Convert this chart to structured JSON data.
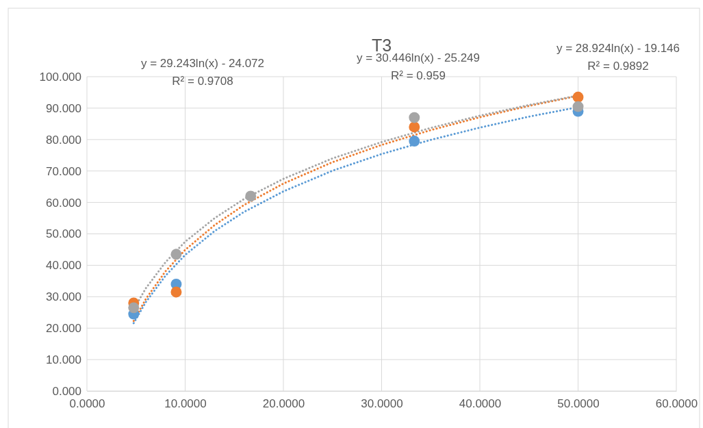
{
  "chart_data": {
    "type": "scatter",
    "title": "T3",
    "marker": "circle",
    "grid": true,
    "xlim": [
      0,
      60
    ],
    "ylim": [
      0,
      100
    ],
    "xticks": [
      {
        "value": 0,
        "label": "0.0000"
      },
      {
        "value": 10,
        "label": "10.0000"
      },
      {
        "value": 20,
        "label": "20.0000"
      },
      {
        "value": 30,
        "label": "30.0000"
      },
      {
        "value": 40,
        "label": "40.0000"
      },
      {
        "value": 50,
        "label": "50.0000"
      },
      {
        "value": 60,
        "label": "60.0000"
      }
    ],
    "yticks": [
      {
        "value": 0,
        "label": "0.000"
      },
      {
        "value": 10,
        "label": "10.000"
      },
      {
        "value": 20,
        "label": "20.000"
      },
      {
        "value": 30,
        "label": "30.000"
      },
      {
        "value": 40,
        "label": "40.000"
      },
      {
        "value": 50,
        "label": "50.000"
      },
      {
        "value": 60,
        "label": "60.000"
      },
      {
        "value": 70,
        "label": "70.000"
      },
      {
        "value": 80,
        "label": "80.000"
      },
      {
        "value": 90,
        "label": "90.000"
      },
      {
        "value": 100,
        "label": "100.000"
      }
    ],
    "x": [
      4.76,
      9.09,
      16.67,
      33.33,
      50
    ],
    "series": [
      {
        "type": "line",
        "line_style": "dotted",
        "marker": "none",
        "color": "#5b9bd5",
        "x": [
          4.76,
          6,
          8,
          10,
          13,
          16,
          20,
          25,
          30,
          35,
          40,
          45,
          50
        ],
        "values": [
          21.6,
          28.3,
          36.7,
          43.3,
          50.9,
          57,
          63.5,
          70.1,
          75.4,
          79.9,
          83.8,
          87.3,
          90.3
        ]
      },
      {
        "type": "line",
        "line_style": "dotted",
        "marker": "none",
        "color": "#ed7d31",
        "x": [
          4.76,
          6,
          8,
          10,
          13,
          16,
          20,
          25,
          30,
          35,
          40,
          45,
          50
        ],
        "values": [
          22.3,
          29.3,
          38.1,
          44.9,
          52.8,
          59.2,
          66,
          72.8,
          78.3,
          83,
          87.1,
          90.7,
          93.9
        ]
      },
      {
        "type": "line",
        "line_style": "dotted",
        "marker": "none",
        "color": "#a5a5a5",
        "x": [
          4.76,
          6,
          8,
          10,
          13,
          16,
          20,
          25,
          30,
          35,
          40,
          45,
          50
        ],
        "values": [
          26,
          32.7,
          41,
          47.5,
          55,
          61.1,
          67.5,
          74,
          79.2,
          83.7,
          87.6,
          91,
          94
        ]
      },
      {
        "color": "#5b9bd5",
        "values": [
          24.5,
          34,
          null,
          79.5,
          89
        ]
      },
      {
        "color": "#ed7d31",
        "values": [
          28,
          31.5,
          null,
          84,
          93.5
        ]
      },
      {
        "color": "#a5a5a5",
        "values": [
          26.5,
          43.5,
          62,
          87,
          90.5
        ]
      }
    ],
    "annotations": [
      "y = 29.243ln(x) - 24.072",
      "R² = 0.9708",
      "y = 30.446ln(x) - 25.249",
      "R² = 0.959",
      "y = 28.924ln(x) - 19.146",
      "R² = 0.9892"
    ]
  }
}
